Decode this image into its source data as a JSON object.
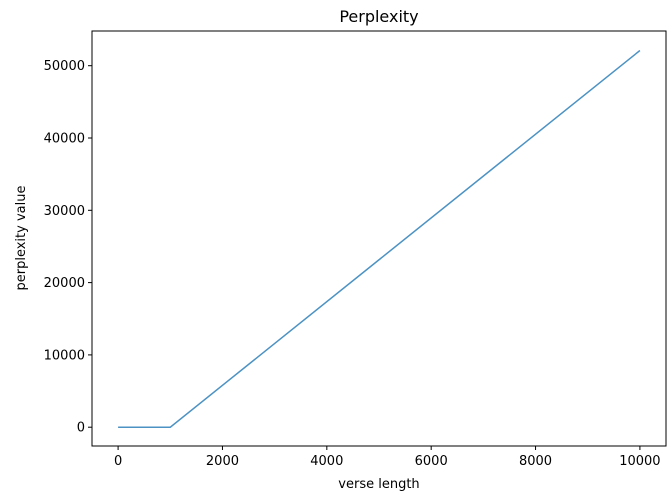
{
  "chart_data": {
    "type": "line",
    "title": "Perplexity",
    "xlabel": "verse length",
    "ylabel": "perplexity value",
    "xlim": [
      -500,
      10500
    ],
    "ylim": [
      -2600,
      54800
    ],
    "xticks": [
      0,
      2000,
      4000,
      6000,
      8000,
      10000
    ],
    "yticks": [
      0,
      10000,
      20000,
      30000,
      40000,
      50000
    ],
    "grid": false,
    "colors": {
      "line": "#4c92c3"
    },
    "series": [
      {
        "x": [
          0,
          1000,
          10000
        ],
        "y": [
          0,
          0,
          52100
        ]
      }
    ]
  }
}
